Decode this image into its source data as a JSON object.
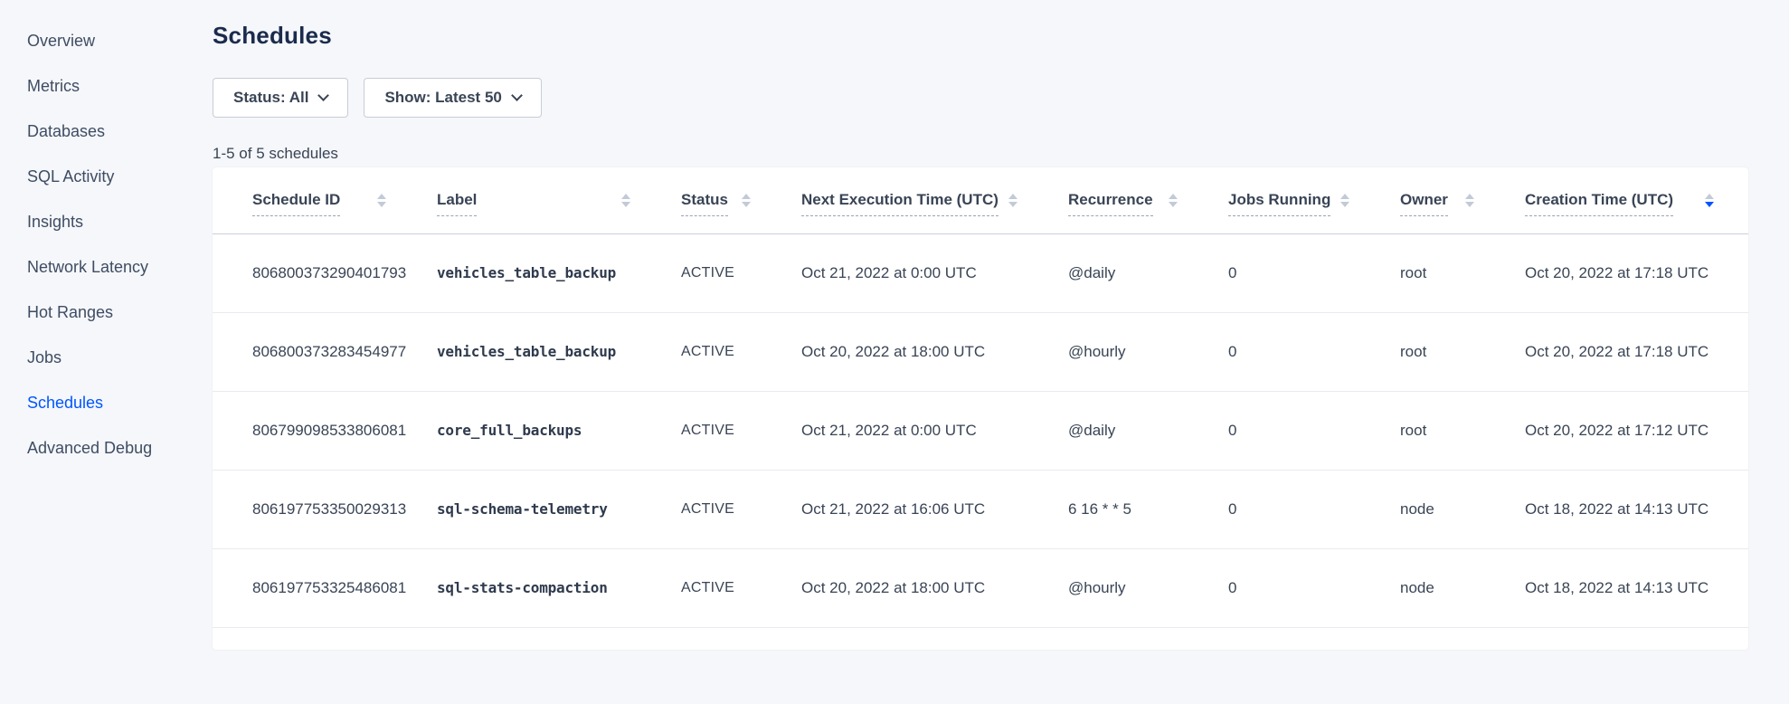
{
  "colors": {
    "accent_blue": "#0055ff",
    "page_background": "#f5f7fa",
    "card_background": "#ffffff",
    "text_dark": "#394455",
    "title_navy": "#1b2b4d",
    "sort_arrow_inactive": "#c3cad7"
  },
  "sidebar": {
    "items": [
      {
        "label": "Overview",
        "active": false
      },
      {
        "label": "Metrics",
        "active": false
      },
      {
        "label": "Databases",
        "active": false
      },
      {
        "label": "SQL Activity",
        "active": false
      },
      {
        "label": "Insights",
        "active": false
      },
      {
        "label": "Network Latency",
        "active": false
      },
      {
        "label": "Hot Ranges",
        "active": false
      },
      {
        "label": "Jobs",
        "active": false
      },
      {
        "label": "Schedules",
        "active": true
      },
      {
        "label": "Advanced Debug",
        "active": false
      }
    ]
  },
  "page": {
    "title": "Schedules"
  },
  "filters": {
    "buttons": [
      {
        "key": "status",
        "label": "Status: All"
      },
      {
        "key": "show",
        "label": "Show: Latest 50"
      }
    ]
  },
  "results_count": "1-5 of 5 schedules",
  "table": {
    "columns": [
      {
        "key": "schedule-id",
        "label": "Schedule ID",
        "sort": "none"
      },
      {
        "key": "label",
        "label": "Label",
        "sort": "none"
      },
      {
        "key": "status",
        "label": "Status",
        "sort": "none"
      },
      {
        "key": "next-execution-time",
        "label": "Next Execution Time (UTC)",
        "sort": "none"
      },
      {
        "key": "recurrence",
        "label": "Recurrence",
        "sort": "none"
      },
      {
        "key": "jobs-running",
        "label": "Jobs Running",
        "sort": "none"
      },
      {
        "key": "owner",
        "label": "Owner",
        "sort": "none"
      },
      {
        "key": "creation-time",
        "label": "Creation Time (UTC)",
        "sort": "desc"
      }
    ],
    "rows": [
      [
        "806800373290401793",
        "vehicles_table_backup",
        "ACTIVE",
        "Oct 21, 2022 at 0:00 UTC",
        "@daily",
        "0",
        "root",
        "Oct 20, 2022 at 17:18 UTC"
      ],
      [
        "806800373283454977",
        "vehicles_table_backup",
        "ACTIVE",
        "Oct 20, 2022 at 18:00 UTC",
        "@hourly",
        "0",
        "root",
        "Oct 20, 2022 at 17:18 UTC"
      ],
      [
        "806799098533806081",
        "core_full_backups",
        "ACTIVE",
        "Oct 21, 2022 at 0:00 UTC",
        "@daily",
        "0",
        "root",
        "Oct 20, 2022 at 17:12 UTC"
      ],
      [
        "806197753350029313",
        "sql-schema-telemetry",
        "ACTIVE",
        "Oct 21, 2022 at 16:06 UTC",
        "6 16 * * 5",
        "0",
        "node",
        "Oct 18, 2022 at 14:13 UTC"
      ],
      [
        "806197753325486081",
        "sql-stats-compaction",
        "ACTIVE",
        "Oct 20, 2022 at 18:00 UTC",
        "@hourly",
        "0",
        "node",
        "Oct 18, 2022 at 14:13 UTC"
      ]
    ]
  }
}
